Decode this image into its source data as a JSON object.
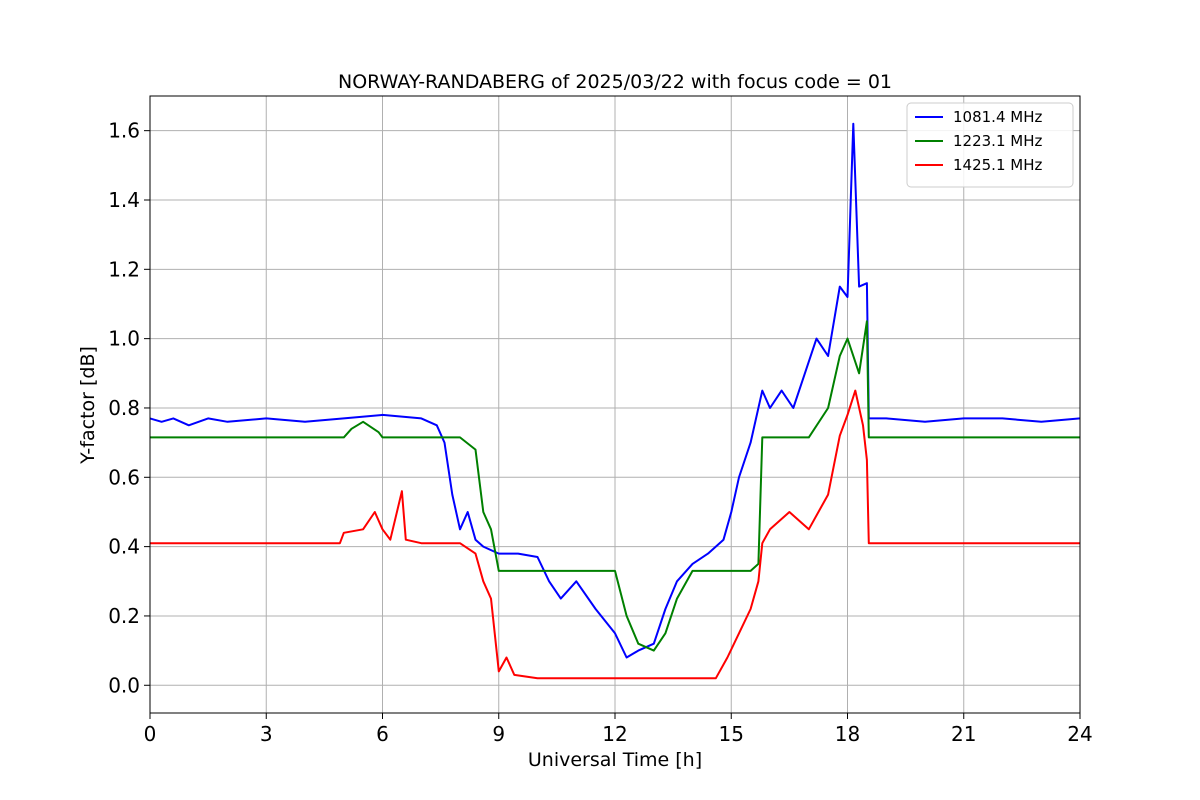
{
  "chart_data": {
    "type": "line",
    "title": "NORWAY-RANDABERG of 2025/03/22 with focus code = 01",
    "xlabel": "Universal Time [h]",
    "ylabel": "Y-factor [dB]",
    "xlim": [
      0,
      24
    ],
    "ylim": [
      -0.08,
      1.7
    ],
    "xticks": [
      0,
      3,
      6,
      9,
      12,
      15,
      18,
      21,
      24
    ],
    "xtick_labels": [
      "0",
      "3",
      "6",
      "9",
      "12",
      "15",
      "18",
      "21",
      "24"
    ],
    "yticks": [
      0.0,
      0.2,
      0.4,
      0.6,
      0.8,
      1.0,
      1.2,
      1.4,
      1.6
    ],
    "ytick_labels": [
      "0.0",
      "0.2",
      "0.4",
      "0.6",
      "0.8",
      "1.0",
      "1.2",
      "1.4",
      "1.6"
    ],
    "grid": true,
    "legend_position": "top-right",
    "series": [
      {
        "name": "1081.4 MHz",
        "color": "#0000ff",
        "x": [
          0,
          0.3,
          0.6,
          1.0,
          1.5,
          2.0,
          3.0,
          4.0,
          5.0,
          6.0,
          7.0,
          7.4,
          7.6,
          7.8,
          8.0,
          8.2,
          8.4,
          8.6,
          8.8,
          9.0,
          9.5,
          10.0,
          10.3,
          10.6,
          11.0,
          11.5,
          12.0,
          12.3,
          12.6,
          13.0,
          13.3,
          13.6,
          14.0,
          14.4,
          14.8,
          15.0,
          15.2,
          15.5,
          15.8,
          16.0,
          16.3,
          16.6,
          16.9,
          17.2,
          17.5,
          17.8,
          18.0,
          18.15,
          18.3,
          18.5,
          18.55,
          19.0,
          20.0,
          21.0,
          22.0,
          23.0,
          24.0
        ],
        "y": [
          0.77,
          0.76,
          0.77,
          0.75,
          0.77,
          0.76,
          0.77,
          0.76,
          0.77,
          0.78,
          0.77,
          0.75,
          0.7,
          0.55,
          0.45,
          0.5,
          0.42,
          0.4,
          0.39,
          0.38,
          0.38,
          0.37,
          0.3,
          0.25,
          0.3,
          0.22,
          0.15,
          0.08,
          0.1,
          0.12,
          0.22,
          0.3,
          0.35,
          0.38,
          0.42,
          0.5,
          0.6,
          0.7,
          0.85,
          0.8,
          0.85,
          0.8,
          0.9,
          1.0,
          0.95,
          1.15,
          1.12,
          1.62,
          1.15,
          1.16,
          0.77,
          0.77,
          0.76,
          0.77,
          0.77,
          0.76,
          0.77
        ]
      },
      {
        "name": "1223.1 MHz",
        "color": "#008000",
        "x": [
          0,
          1.0,
          2.0,
          3.0,
          4.0,
          5.0,
          5.2,
          5.5,
          5.9,
          6.0,
          7.0,
          8.0,
          8.4,
          8.6,
          8.8,
          9.0,
          9.5,
          10.0,
          10.5,
          11.0,
          11.5,
          12.0,
          12.3,
          12.6,
          13.0,
          13.3,
          13.6,
          14.0,
          14.5,
          15.0,
          15.5,
          15.7,
          15.8,
          16.0,
          16.5,
          17.0,
          17.5,
          17.8,
          18.0,
          18.3,
          18.5,
          18.55,
          19.0,
          20.0,
          21.0,
          22.0,
          23.0,
          24.0
        ],
        "y": [
          0.715,
          0.715,
          0.715,
          0.715,
          0.715,
          0.715,
          0.74,
          0.76,
          0.73,
          0.715,
          0.715,
          0.715,
          0.68,
          0.5,
          0.45,
          0.33,
          0.33,
          0.33,
          0.33,
          0.33,
          0.33,
          0.33,
          0.2,
          0.12,
          0.1,
          0.15,
          0.25,
          0.33,
          0.33,
          0.33,
          0.33,
          0.35,
          0.715,
          0.715,
          0.715,
          0.715,
          0.8,
          0.95,
          1.0,
          0.9,
          1.05,
          0.715,
          0.715,
          0.715,
          0.715,
          0.715,
          0.715,
          0.715
        ]
      },
      {
        "name": "1425.1 MHz",
        "color": "#ff0000",
        "x": [
          0,
          1.0,
          2.0,
          3.0,
          4.0,
          4.9,
          5.0,
          5.5,
          5.8,
          6.0,
          6.2,
          6.5,
          6.6,
          7.0,
          8.0,
          8.4,
          8.6,
          8.8,
          9.0,
          9.2,
          9.4,
          10.0,
          11.0,
          12.0,
          13.0,
          14.0,
          14.6,
          14.9,
          15.2,
          15.5,
          15.7,
          15.8,
          16.0,
          16.5,
          17.0,
          17.5,
          17.8,
          18.0,
          18.2,
          18.4,
          18.5,
          18.55,
          19.0,
          20.0,
          21.0,
          22.0,
          23.0,
          24.0
        ],
        "y": [
          0.41,
          0.41,
          0.41,
          0.41,
          0.41,
          0.41,
          0.44,
          0.45,
          0.5,
          0.45,
          0.42,
          0.56,
          0.42,
          0.41,
          0.41,
          0.38,
          0.3,
          0.25,
          0.04,
          0.08,
          0.03,
          0.02,
          0.02,
          0.02,
          0.02,
          0.02,
          0.02,
          0.08,
          0.15,
          0.22,
          0.3,
          0.41,
          0.45,
          0.5,
          0.45,
          0.55,
          0.72,
          0.78,
          0.85,
          0.75,
          0.65,
          0.41,
          0.41,
          0.41,
          0.41,
          0.41,
          0.41,
          0.41
        ]
      }
    ]
  }
}
